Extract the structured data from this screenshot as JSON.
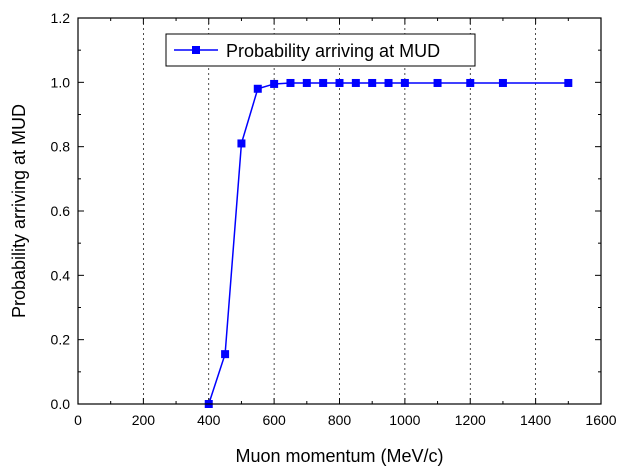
{
  "chart_data": {
    "type": "line",
    "xlabel": "Muon momentum (MeV/c)",
    "ylabel": "Probability arriving at MUD",
    "xlim": [
      0,
      1600
    ],
    "ylim": [
      0.0,
      1.2
    ],
    "x_ticks": [
      "0",
      "200",
      "400",
      "600",
      "800",
      "1000",
      "1200",
      "1400",
      "1600"
    ],
    "y_ticks": [
      "0.0",
      "0.2",
      "0.4",
      "0.6",
      "0.8",
      "1.0",
      "1.2"
    ],
    "grid": "vertical-dashed",
    "legend_position": "top-center",
    "series": [
      {
        "name": "Probability arriving at MUD",
        "color": "#0000ff",
        "marker": "square",
        "x": [
          400,
          450,
          500,
          550,
          600,
          650,
          700,
          750,
          800,
          850,
          900,
          950,
          1000,
          1100,
          1200,
          1300,
          1500
        ],
        "y": [
          0.0,
          0.155,
          0.81,
          0.98,
          0.995,
          0.998,
          0.998,
          0.998,
          0.998,
          0.998,
          0.998,
          0.998,
          0.998,
          0.998,
          0.998,
          0.998,
          0.998
        ]
      }
    ]
  }
}
